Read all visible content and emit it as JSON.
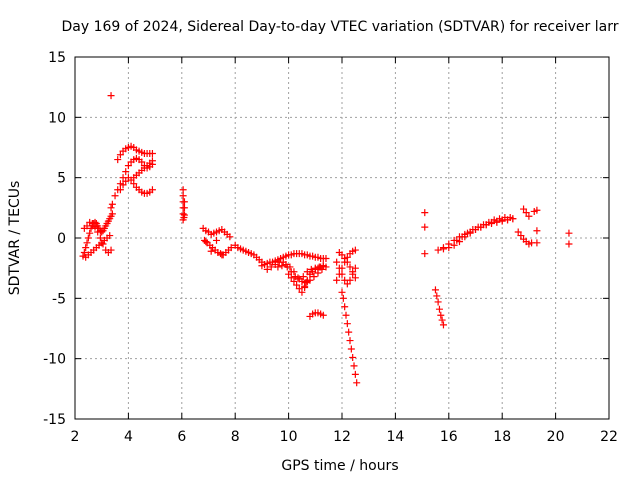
{
  "chart_data": {
    "type": "scatter",
    "title": "Day 169 of 2024, Sidereal Day-to-day VTEC variation (SDTVAR) for receiver larr",
    "xlabel": "GPS time / hours",
    "ylabel": "SDTVAR / TECUs",
    "xlim": [
      2,
      22
    ],
    "ylim": [
      -15,
      15
    ],
    "xticks": [
      "2",
      "4",
      "6",
      "8",
      "10",
      "12",
      "14",
      "16",
      "18",
      "20",
      "22"
    ],
    "yticks": [
      "15",
      "10",
      "5",
      "0",
      "-5",
      "-10",
      "-15"
    ],
    "grid": true,
    "marker": "plus",
    "color": "#ff0000",
    "series": [
      {
        "x": [
          2.3,
          2.35,
          2.4,
          2.45,
          2.5,
          2.55,
          2.6,
          2.65,
          2.7,
          2.75,
          2.8,
          2.85,
          2.9,
          2.95,
          3.0,
          3.05,
          3.1,
          3.15,
          3.2,
          3.25,
          3.3,
          3.35,
          3.4,
          2.35,
          2.45,
          2.55,
          2.65,
          2.75,
          2.85,
          2.95,
          3.05,
          3.15,
          3.25,
          3.35,
          2.4,
          2.5,
          2.6,
          2.7,
          2.8,
          2.9,
          3.0,
          3.1,
          3.2,
          3.3,
          3.35,
          3.4,
          3.5,
          3.6,
          3.7,
          3.8,
          3.9,
          4.0,
          4.1,
          4.2,
          4.3,
          4.4,
          4.5,
          4.6,
          4.7,
          4.8,
          4.9,
          3.6,
          3.7,
          3.8,
          3.9,
          4.0,
          4.1,
          4.2,
          4.3,
          4.4,
          4.5,
          4.6,
          4.7,
          4.8,
          4.9,
          3.7,
          3.8,
          3.9,
          4.0,
          4.1,
          4.2,
          4.3,
          4.4,
          4.5,
          4.6,
          4.7,
          4.8,
          4.9,
          4.2,
          4.3,
          4.4,
          4.5,
          4.6,
          4.7,
          4.8,
          4.9,
          6.05,
          6.05,
          6.05,
          6.05,
          6.05,
          6.05,
          6.08,
          6.1,
          6.1,
          6.1,
          6.8,
          6.9,
          7.0,
          7.1,
          7.2,
          7.3,
          7.4,
          7.5,
          7.6,
          7.7,
          7.8,
          6.85,
          6.95,
          7.05,
          7.15,
          7.25,
          7.35,
          7.45,
          7.55,
          7.65,
          7.75,
          7.85,
          6.9,
          7.1,
          7.3,
          7.5,
          8.0,
          8.1,
          8.2,
          8.3,
          8.4,
          8.5,
          8.6,
          8.7,
          8.8,
          8.9,
          9.0,
          9.0,
          9.1,
          9.2,
          9.3,
          9.4,
          9.5,
          9.6,
          9.7,
          9.8,
          9.9,
          10.0,
          10.1,
          10.2,
          10.3,
          10.4,
          10.5,
          10.6,
          10.7,
          10.8,
          10.9,
          11.0,
          11.1,
          11.2,
          11.3,
          11.4,
          9.2,
          9.35,
          9.5,
          9.65,
          9.8,
          9.95,
          10.1,
          10.25,
          10.4,
          10.55,
          10.7,
          10.85,
          11.0,
          11.15,
          11.3,
          9.6,
          9.75,
          9.9,
          10.05,
          10.2,
          10.35,
          10.5,
          10.65,
          10.8,
          10.95,
          11.1,
          11.25,
          11.4,
          10.0,
          10.1,
          10.2,
          10.3,
          10.4,
          10.5,
          10.6,
          10.7,
          10.8,
          10.6,
          10.7,
          10.8,
          10.9,
          11.0,
          11.1,
          11.2,
          11.3,
          10.8,
          10.9,
          11.0,
          11.1,
          11.2,
          11.3,
          11.8,
          11.9,
          12.0,
          12.1,
          12.2,
          12.3,
          12.4,
          12.5,
          11.8,
          11.9,
          12.0,
          12.1,
          12.2,
          12.3,
          12.4,
          12.5,
          11.9,
          12.0,
          12.1,
          12.2,
          12.3,
          12.4,
          12.5,
          12.0,
          12.05,
          12.1,
          12.15,
          12.2,
          12.25,
          12.3,
          12.35,
          12.4,
          12.45,
          12.5,
          12.55,
          15.1,
          15.1,
          15.1,
          15.5,
          15.55,
          15.6,
          15.65,
          15.7,
          15.75,
          15.8,
          15.6,
          15.8,
          16.0,
          16.2,
          16.4,
          16.6,
          16.8,
          17.0,
          17.2,
          17.4,
          17.6,
          17.8,
          18.0,
          18.2,
          18.4,
          15.8,
          16.0,
          16.2,
          16.4,
          16.6,
          16.8,
          17.0,
          17.2,
          17.4,
          17.6,
          17.8,
          18.0,
          18.2,
          18.4,
          16.3,
          16.5,
          16.7,
          16.9,
          17.1,
          17.3,
          17.5,
          17.7,
          17.9,
          18.1,
          18.3,
          18.6,
          18.7,
          18.8,
          18.9,
          19.0,
          19.1,
          18.8,
          18.9,
          19.0,
          19.2,
          19.3,
          19.3,
          19.3,
          20.5,
          20.5,
          3.35
        ],
        "y": [
          -1.5,
          -1.2,
          -0.8,
          -0.4,
          0.0,
          0.4,
          0.8,
          1.0,
          1.2,
          1.3,
          1.2,
          1.0,
          0.8,
          0.6,
          0.5,
          0.6,
          0.8,
          1.0,
          1.2,
          1.4,
          1.6,
          1.8,
          2.0,
          0.8,
          1.0,
          1.3,
          1.2,
          0.9,
          0.5,
          0.0,
          -0.5,
          -1.0,
          -1.2,
          -1.0,
          -1.6,
          -1.4,
          -1.2,
          -1.0,
          -0.8,
          -0.6,
          -0.4,
          -0.2,
          0.0,
          0.2,
          2.5,
          2.8,
          3.5,
          4.0,
          4.5,
          5.0,
          5.5,
          6.0,
          6.3,
          6.5,
          6.6,
          6.5,
          6.3,
          6.0,
          5.8,
          5.9,
          6.1,
          6.5,
          6.9,
          7.2,
          7.4,
          7.5,
          7.6,
          7.5,
          7.3,
          7.2,
          7.1,
          7.0,
          7.0,
          7.0,
          7.0,
          4.0,
          4.4,
          4.7,
          5.0,
          4.8,
          4.5,
          4.2,
          4.0,
          3.8,
          3.7,
          3.7,
          3.8,
          4.0,
          5.0,
          5.2,
          5.4,
          5.6,
          5.8,
          6.0,
          6.2,
          6.4,
          4.0,
          3.5,
          3.0,
          2.5,
          2.0,
          1.5,
          1.7,
          1.9,
          2.5,
          3.0,
          0.8,
          0.6,
          0.5,
          0.3,
          0.4,
          0.5,
          0.6,
          0.7,
          0.5,
          0.3,
          0.1,
          -0.2,
          -0.4,
          -0.6,
          -0.8,
          -1.0,
          -1.2,
          -1.3,
          -1.4,
          -1.2,
          -1.0,
          -0.8,
          -0.3,
          -1.1,
          -0.2,
          -1.4,
          -0.6,
          -0.8,
          -0.9,
          -1.0,
          -1.1,
          -1.2,
          -1.3,
          -1.4,
          -1.6,
          -1.8,
          -2.0,
          -2.3,
          -2.2,
          -2.1,
          -2.0,
          -2.0,
          -1.9,
          -1.8,
          -1.7,
          -1.6,
          -1.5,
          -1.4,
          -1.4,
          -1.3,
          -1.3,
          -1.3,
          -1.3,
          -1.4,
          -1.4,
          -1.5,
          -1.5,
          -1.6,
          -1.6,
          -1.7,
          -1.7,
          -1.7,
          -2.6,
          -2.4,
          -2.2,
          -2.0,
          -2.0,
          -2.4,
          -2.8,
          -3.2,
          -3.4,
          -3.2,
          -2.8,
          -2.6,
          -2.5,
          -2.4,
          -2.3,
          -2.4,
          -2.3,
          -2.2,
          -2.4,
          -2.8,
          -3.3,
          -3.6,
          -3.7,
          -3.5,
          -3.2,
          -2.9,
          -2.6,
          -2.4,
          -3.0,
          -3.3,
          -3.6,
          -3.9,
          -4.2,
          -4.5,
          -4.1,
          -3.6,
          -3.0,
          -4.0,
          -3.5,
          -3.0,
          -2.8,
          -2.6,
          -2.5,
          -2.4,
          -2.3,
          -6.5,
          -6.3,
          -6.2,
          -6.2,
          -6.3,
          -6.4,
          -2.0,
          -2.5,
          -3.0,
          -3.5,
          -3.8,
          -3.5,
          -3.0,
          -2.5,
          -3.5,
          -3.0,
          -2.5,
          -2.0,
          -1.6,
          -1.3,
          -1.1,
          -1.0,
          -1.2,
          -1.4,
          -1.7,
          -2.0,
          -2.4,
          -2.8,
          -3.3,
          -4.5,
          -5.0,
          -5.7,
          -6.4,
          -7.1,
          -7.8,
          -8.5,
          -9.2,
          -9.9,
          -10.6,
          -11.3,
          -12.0,
          2.1,
          0.9,
          -1.3,
          -4.3,
          -4.8,
          -5.3,
          -5.9,
          -6.4,
          -6.8,
          -7.2,
          -1.0,
          -0.9,
          -0.8,
          -0.6,
          -0.3,
          0.1,
          0.4,
          0.7,
          0.9,
          1.1,
          1.2,
          1.3,
          1.4,
          1.5,
          1.6,
          -0.8,
          -0.5,
          -0.2,
          0.1,
          0.3,
          0.5,
          0.7,
          0.9,
          1.1,
          1.3,
          1.4,
          1.5,
          1.5,
          1.6,
          -0.2,
          0.1,
          0.4,
          0.7,
          0.9,
          1.1,
          1.3,
          1.5,
          1.6,
          1.7,
          1.7,
          0.5,
          0.2,
          -0.1,
          -0.3,
          -0.5,
          -0.4,
          2.4,
          2.1,
          1.8,
          2.2,
          2.3,
          0.6,
          -0.4,
          0.4,
          -0.5,
          11.8
        ]
      }
    ]
  }
}
